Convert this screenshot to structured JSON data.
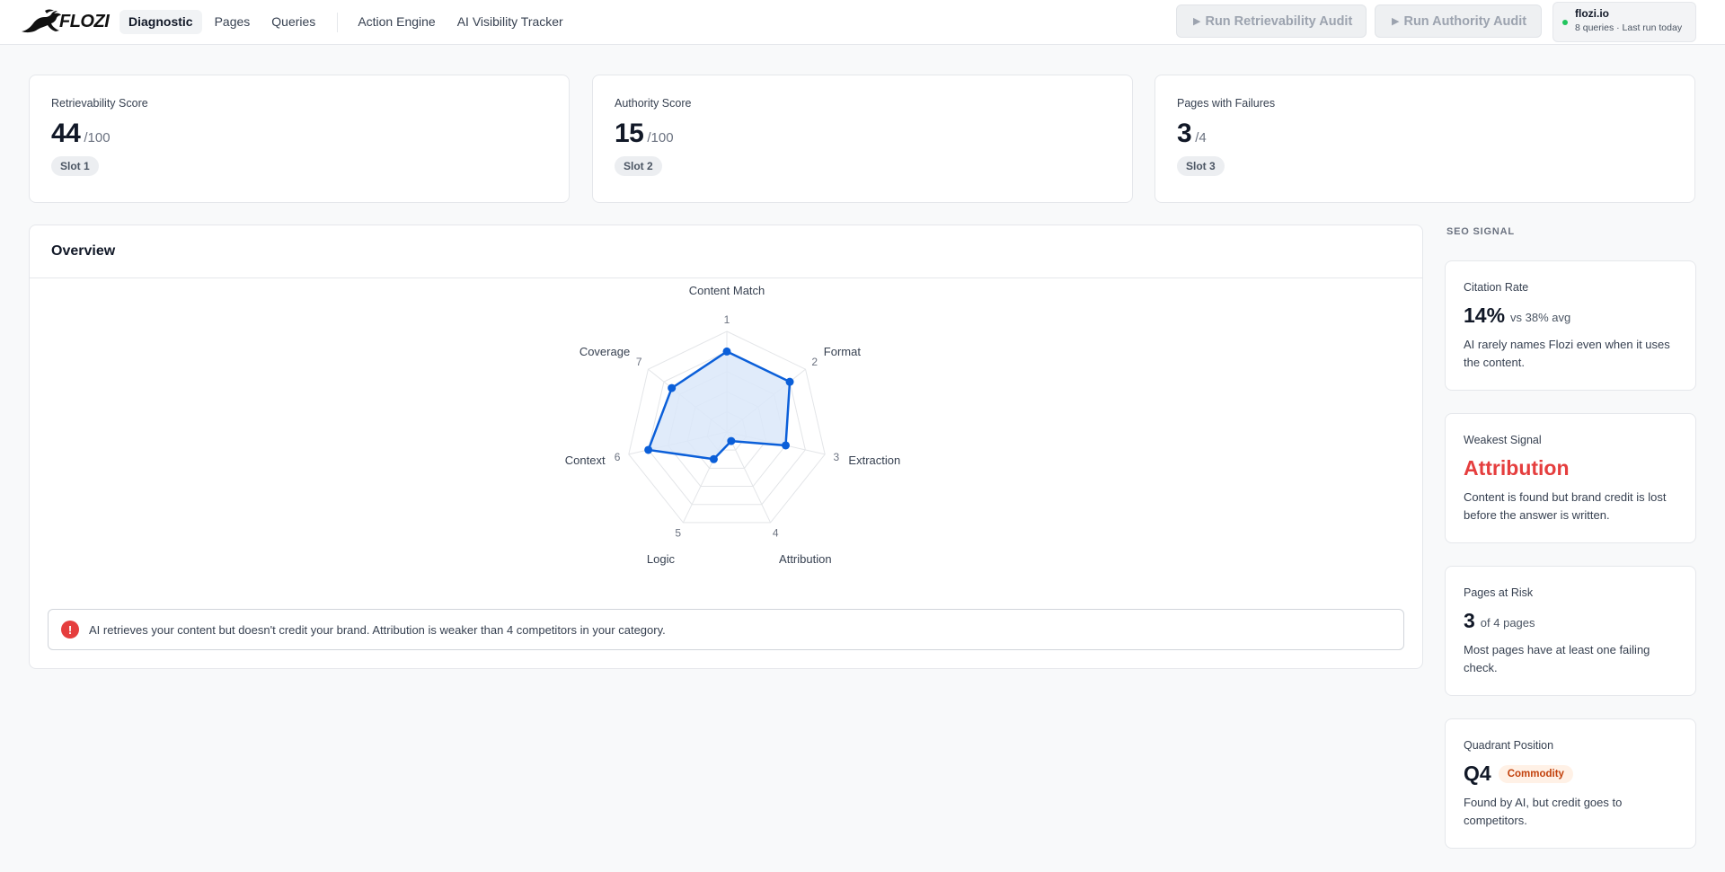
{
  "brand": {
    "logo_text": "FLOZI"
  },
  "nav": {
    "items": [
      {
        "label": "Diagnostic",
        "active": true
      },
      {
        "label": "Pages"
      },
      {
        "label": "Queries"
      }
    ],
    "secondary": [
      {
        "label": "Action Engine"
      },
      {
        "label": "AI Visibility Tracker"
      }
    ]
  },
  "actions": {
    "retrievability_audit": "Run Retrievability Audit",
    "authority_audit": "Run Authority Audit",
    "icon": "play-icon"
  },
  "site": {
    "name": "flozi.io",
    "meta": "8 queries · Last run today",
    "status_color": "#22c55e"
  },
  "stats": [
    {
      "label": "Retrievability Score",
      "value": "44",
      "denom": "/100",
      "slot": "Slot 1"
    },
    {
      "label": "Authority Score",
      "value": "15",
      "denom": "/100",
      "slot": "Slot 2"
    },
    {
      "label": "Pages with Failures",
      "value": "3",
      "denom": "/4",
      "slot": "Slot 3"
    }
  ],
  "overview": {
    "title": "Overview",
    "alert": "AI retrieves your content but doesn't credit your brand. Attribution is weaker than 4 competitors in your category.",
    "alert_icon": "alert-icon",
    "alert_color": "#e53e3e"
  },
  "chart_data": {
    "type": "radar",
    "axes": [
      {
        "name": "Content Match",
        "num": "1"
      },
      {
        "name": "Format",
        "num": "2"
      },
      {
        "name": "Extraction",
        "num": "3"
      },
      {
        "name": "Attribution",
        "num": "4"
      },
      {
        "name": "Logic",
        "num": "5"
      },
      {
        "name": "Context",
        "num": "6"
      },
      {
        "name": "Coverage",
        "num": "7"
      }
    ],
    "values": [
      0.8,
      0.8,
      0.6,
      0.1,
      0.3,
      0.8,
      0.7
    ],
    "range": [
      0,
      1
    ],
    "grid_levels": 5,
    "color": "#0b5fd9",
    "fill": "#dbe7f9"
  },
  "seo_signal": {
    "title": "SEO SIGNAL",
    "cards": [
      {
        "label": "Citation Rate",
        "value": "14%",
        "sub": "vs 38% avg",
        "desc": "AI rarely names Flozi even when it uses the content."
      },
      {
        "label": "Weakest Signal",
        "value": "Attribution",
        "value_color": "#e53e3e",
        "desc": "Content is found but brand credit is lost before the answer is written."
      },
      {
        "label": "Pages at Risk",
        "value": "3",
        "sub": "of 4 pages",
        "desc": "Most pages have at least one failing check."
      },
      {
        "label": "Quadrant Position",
        "value": "Q4",
        "badge": "Commodity",
        "desc": "Found by AI, but credit goes to competitors."
      }
    ]
  }
}
